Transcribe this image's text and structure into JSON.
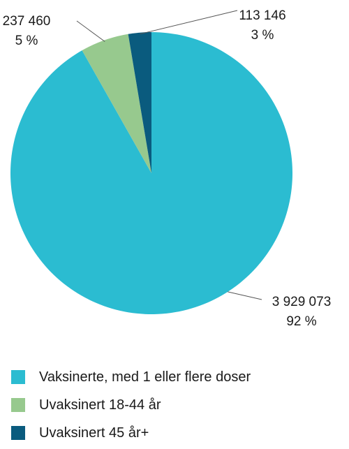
{
  "chart_data": {
    "type": "pie",
    "title": "",
    "slices": [
      {
        "name": "Vaksinerte, med 1 eller flere doser",
        "value": 3929073,
        "value_label": "3 929 073",
        "percent_label": "92 %",
        "color": "#2bbcd1"
      },
      {
        "name": "Uvaksinert 18-44 år",
        "value": 237460,
        "value_label": "237 460",
        "percent_label": "5 %",
        "color": "#97c98e"
      },
      {
        "name": "Uvaksinert 45 år+",
        "value": 113146,
        "value_label": "113 146",
        "percent_label": "3 %",
        "color": "#0a5b7e"
      }
    ],
    "start_angle_deg": 0,
    "direction": "clockwise",
    "legend_position": "bottom"
  }
}
